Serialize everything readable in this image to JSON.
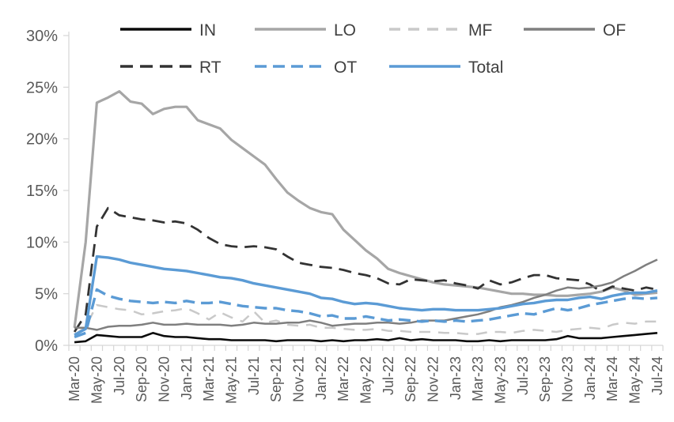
{
  "chart_data": {
    "type": "line",
    "title": "",
    "xlabel": "",
    "ylabel": "",
    "ylim": [
      0,
      30
    ],
    "ytick_step": 5,
    "y_tick_labels": [
      "0%",
      "5%",
      "10%",
      "15%",
      "20%",
      "25%",
      "30%"
    ],
    "grid": false,
    "legend_position": "top",
    "x_label_every": 2,
    "axis_color": "#d6d6d6",
    "label_color": "#595959",
    "legend_text_color": "#404040",
    "x": [
      "Mar-20",
      "Apr-20",
      "May-20",
      "Jun-20",
      "Jul-20",
      "Aug-20",
      "Sep-20",
      "Oct-20",
      "Nov-20",
      "Dec-20",
      "Jan-21",
      "Feb-21",
      "Mar-21",
      "Apr-21",
      "May-21",
      "Jun-21",
      "Jul-21",
      "Aug-21",
      "Sep-21",
      "Oct-21",
      "Nov-21",
      "Dec-21",
      "Jan-22",
      "Feb-22",
      "Mar-22",
      "Apr-22",
      "May-22",
      "Jun-22",
      "Jul-22",
      "Aug-22",
      "Sep-22",
      "Oct-22",
      "Nov-22",
      "Dec-22",
      "Jan-23",
      "Feb-23",
      "Mar-23",
      "Apr-23",
      "May-23",
      "Jun-23",
      "Jul-23",
      "Aug-23",
      "Sep-23",
      "Oct-23",
      "Nov-23",
      "Dec-23",
      "Jan-24",
      "Feb-24",
      "Mar-24",
      "Apr-24",
      "May-24",
      "Jun-24",
      "Jul-24"
    ],
    "series": [
      {
        "name": "IN",
        "color": "#0a0a0a",
        "dash": null,
        "width": 2.6,
        "values": [
          0.3,
          0.4,
          1.0,
          0.9,
          0.8,
          0.8,
          0.8,
          1.2,
          0.9,
          0.8,
          0.8,
          0.7,
          0.6,
          0.6,
          0.5,
          0.5,
          0.5,
          0.5,
          0.4,
          0.5,
          0.5,
          0.5,
          0.4,
          0.5,
          0.4,
          0.5,
          0.5,
          0.6,
          0.5,
          0.7,
          0.5,
          0.6,
          0.5,
          0.5,
          0.5,
          0.4,
          0.4,
          0.5,
          0.4,
          0.5,
          0.5,
          0.5,
          0.5,
          0.6,
          0.9,
          0.7,
          0.7,
          0.7,
          0.8,
          0.9,
          1.0,
          1.1,
          1.2
        ]
      },
      {
        "name": "LO",
        "color": "#a6a6a6",
        "dash": null,
        "width": 3.2,
        "values": [
          1.7,
          10.0,
          23.5,
          24.0,
          24.6,
          23.6,
          23.4,
          22.4,
          22.9,
          23.1,
          23.1,
          21.8,
          21.4,
          21.0,
          19.9,
          19.1,
          18.3,
          17.5,
          16.1,
          14.8,
          14.0,
          13.3,
          12.9,
          12.7,
          11.2,
          10.2,
          9.2,
          8.4,
          7.4,
          7.0,
          6.7,
          6.4,
          6.1,
          5.9,
          5.8,
          5.7,
          5.6,
          5.4,
          5.2,
          5.0,
          5.0,
          4.9,
          4.9,
          4.8,
          4.8,
          4.9,
          5.0,
          5.2,
          5.6,
          5.3,
          4.9,
          5.0,
          5.1
        ]
      },
      {
        "name": "MF",
        "color": "#c9c9c9",
        "dash": "14,10",
        "width": 2.5,
        "values": [
          1.0,
          1.8,
          3.9,
          3.7,
          3.5,
          3.4,
          3.0,
          3.1,
          3.3,
          3.4,
          3.6,
          3.1,
          2.5,
          3.2,
          2.7,
          2.3,
          3.3,
          2.2,
          2.4,
          2.0,
          1.9,
          2.0,
          1.7,
          1.7,
          1.6,
          1.5,
          1.5,
          1.6,
          1.4,
          1.4,
          1.3,
          1.3,
          1.3,
          1.2,
          1.2,
          1.1,
          1.1,
          1.3,
          1.3,
          1.2,
          1.4,
          1.5,
          1.4,
          1.3,
          1.5,
          1.6,
          1.7,
          1.6,
          2.0,
          2.2,
          2.1,
          2.3,
          2.3
        ]
      },
      {
        "name": "OF",
        "color": "#7f7f7f",
        "dash": null,
        "width": 2.5,
        "values": [
          1.7,
          1.7,
          1.5,
          1.8,
          1.9,
          1.9,
          2.0,
          2.2,
          2.0,
          2.0,
          2.1,
          2.0,
          2.0,
          2.0,
          1.9,
          2.0,
          2.2,
          2.1,
          2.1,
          2.2,
          2.2,
          2.4,
          2.2,
          1.9,
          2.0,
          2.1,
          2.1,
          2.2,
          2.2,
          2.1,
          2.2,
          2.4,
          2.4,
          2.4,
          2.6,
          2.8,
          3.0,
          3.3,
          3.7,
          3.9,
          4.2,
          4.6,
          4.9,
          5.3,
          5.6,
          5.5,
          5.6,
          5.8,
          6.1,
          6.7,
          7.2,
          7.8,
          8.3
        ]
      },
      {
        "name": "RT",
        "color": "#333333",
        "dash": "16,9",
        "width": 2.8,
        "values": [
          1.3,
          3.0,
          11.5,
          13.3,
          12.6,
          12.4,
          12.2,
          12.1,
          11.9,
          12.0,
          11.8,
          11.2,
          10.4,
          9.8,
          9.6,
          9.5,
          9.6,
          9.5,
          9.3,
          8.6,
          8.0,
          7.8,
          7.6,
          7.5,
          7.3,
          7.0,
          6.8,
          6.5,
          6.0,
          5.9,
          6.4,
          6.3,
          6.2,
          6.3,
          6.0,
          5.8,
          5.5,
          6.3,
          5.9,
          6.1,
          6.5,
          6.8,
          6.8,
          6.5,
          6.4,
          6.3,
          5.9,
          5.2,
          5.7,
          5.5,
          5.3,
          5.6,
          5.4
        ]
      },
      {
        "name": "OT",
        "color": "#5b9bd5",
        "dash": "15,8",
        "width": 3.4,
        "values": [
          0.8,
          1.2,
          5.4,
          4.8,
          4.5,
          4.3,
          4.2,
          4.1,
          4.2,
          4.1,
          4.3,
          4.1,
          4.1,
          4.2,
          4.0,
          3.8,
          3.7,
          3.6,
          3.6,
          3.4,
          3.3,
          3.1,
          2.8,
          2.9,
          2.6,
          2.6,
          2.8,
          2.6,
          2.4,
          2.5,
          2.4,
          2.3,
          2.4,
          2.3,
          2.4,
          2.3,
          2.4,
          2.5,
          2.7,
          2.9,
          3.1,
          3.0,
          3.3,
          3.6,
          3.4,
          3.6,
          3.9,
          4.1,
          4.3,
          4.5,
          4.6,
          4.5,
          4.6
        ]
      },
      {
        "name": "Total",
        "color": "#5b9bd5",
        "dash": null,
        "width": 3.4,
        "values": [
          1.0,
          1.6,
          8.6,
          8.5,
          8.3,
          8.0,
          7.8,
          7.6,
          7.4,
          7.3,
          7.2,
          7.0,
          6.8,
          6.6,
          6.5,
          6.3,
          6.0,
          5.8,
          5.6,
          5.4,
          5.2,
          5.0,
          4.6,
          4.5,
          4.2,
          4.0,
          4.1,
          4.0,
          3.8,
          3.6,
          3.5,
          3.4,
          3.5,
          3.5,
          3.4,
          3.4,
          3.4,
          3.5,
          3.6,
          3.8,
          4.0,
          4.1,
          4.3,
          4.4,
          4.4,
          4.6,
          4.7,
          4.5,
          4.8,
          5.0,
          5.1,
          5.1,
          5.3
        ]
      }
    ],
    "legend_rows": [
      [
        "IN",
        "LO",
        "MF",
        "OF"
      ],
      [
        "RT",
        "OT",
        "Total"
      ]
    ]
  }
}
